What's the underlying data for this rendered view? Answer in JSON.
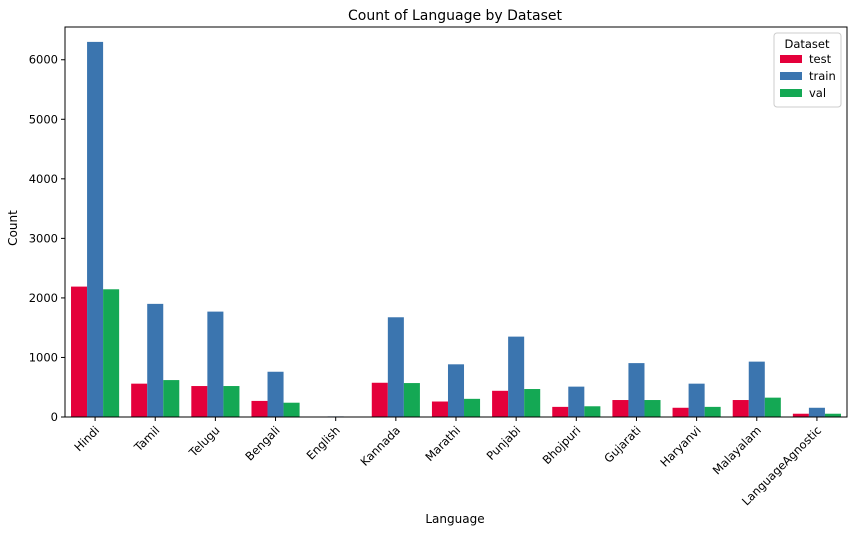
{
  "chart_data": {
    "type": "bar",
    "title": "Count of Language by Dataset",
    "xlabel": "Language",
    "ylabel": "Count",
    "ylim": [
      0,
      6550
    ],
    "yticks": [
      0,
      1000,
      2000,
      3000,
      4000,
      5000,
      6000
    ],
    "categories": [
      "Hindi",
      "Tamil",
      "Telugu",
      "Bengali",
      "English",
      "Kannada",
      "Marathi",
      "Punjabi",
      "Bhojpuri",
      "Gujarati",
      "Haryanvi",
      "Malayalam",
      "LanguageAgnostic"
    ],
    "series": [
      {
        "name": "test",
        "color": "#e4003b",
        "values": [
          2190,
          560,
          520,
          270,
          0,
          575,
          260,
          440,
          170,
          285,
          155,
          285,
          55
        ]
      },
      {
        "name": "train",
        "color": "#3b75af",
        "values": [
          6300,
          1900,
          1770,
          760,
          10,
          1675,
          885,
          1350,
          510,
          905,
          560,
          930,
          155
        ]
      },
      {
        "name": "val",
        "color": "#14a854",
        "values": [
          2145,
          620,
          520,
          240,
          0,
          570,
          305,
          470,
          180,
          285,
          170,
          325,
          55
        ]
      }
    ],
    "legend": {
      "title": "Dataset",
      "position": "upper-right"
    }
  }
}
